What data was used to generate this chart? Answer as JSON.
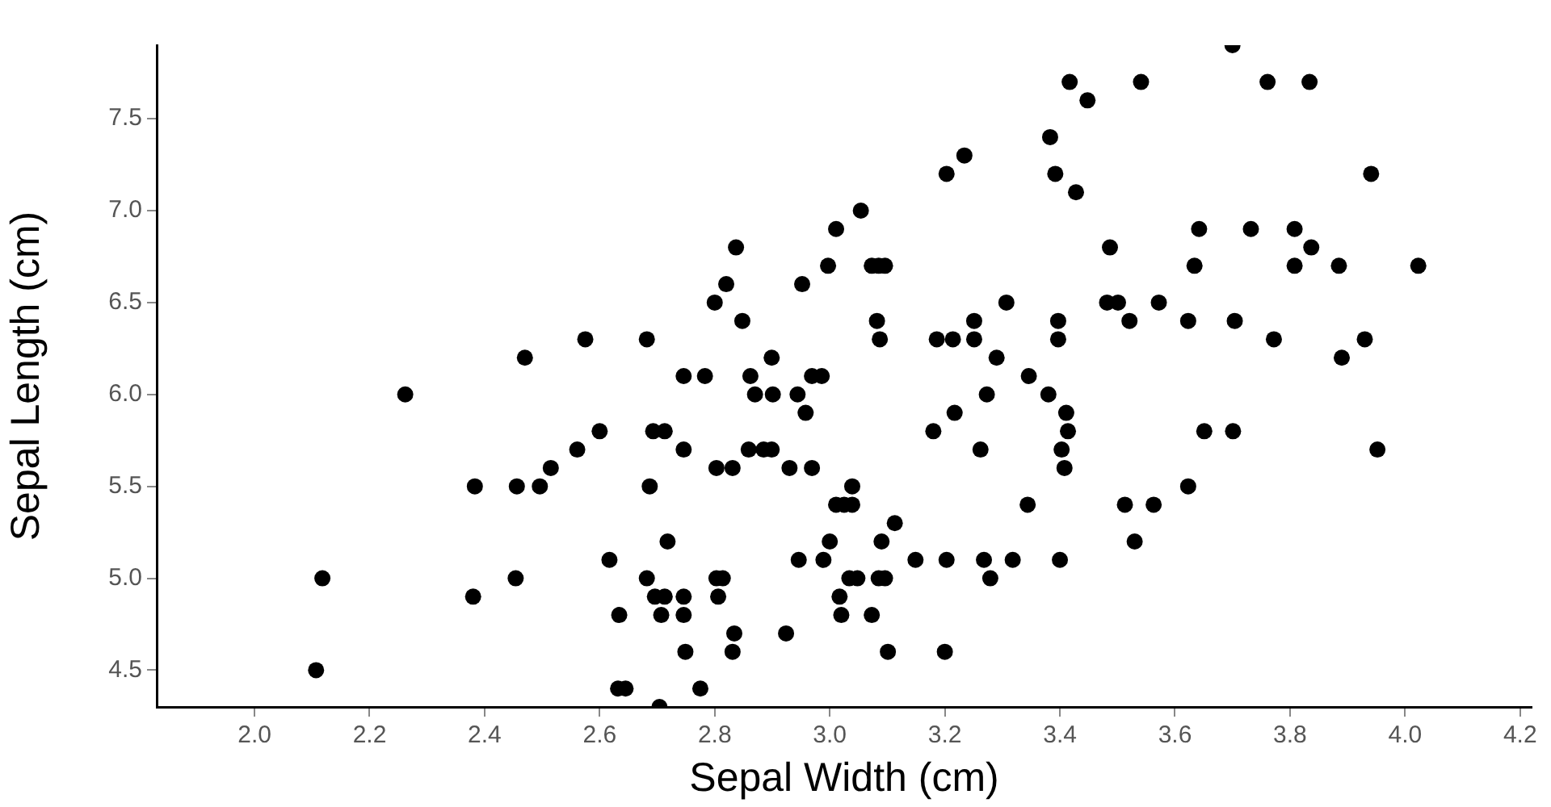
{
  "chart_data": {
    "type": "scatter",
    "xlabel": "Sepal Width (cm)",
    "ylabel": "Sepal Length (cm)",
    "xlim": [
      1.83,
      4.22
    ],
    "xticks": [
      {
        "value": 2.0,
        "label": "2.0"
      },
      {
        "value": 2.2,
        "label": "2.2"
      },
      {
        "value": 2.4,
        "label": "2.4"
      },
      {
        "value": 2.6,
        "label": "2.6"
      },
      {
        "value": 2.8,
        "label": "2.8"
      },
      {
        "value": 3.0,
        "label": "3.0"
      },
      {
        "value": 3.2,
        "label": "3.2"
      },
      {
        "value": 3.4,
        "label": "3.4"
      },
      {
        "value": 3.6,
        "label": "3.6"
      },
      {
        "value": 3.8,
        "label": "3.8"
      },
      {
        "value": 4.0,
        "label": "4.0"
      },
      {
        "value": 4.2,
        "label": "4.2"
      }
    ],
    "ylim": [
      4.3,
      7.9
    ],
    "yticks": [
      4.5,
      {
        "value": 5.0,
        "label": "5.0"
      },
      5.5,
      {
        "value": 6.0,
        "label": "6.0"
      },
      6.5,
      {
        "value": 7.0,
        "label": "7.0"
      },
      7.5
    ],
    "grid": false,
    "legend": false,
    "marker": "circle",
    "series": [
      {
        "color": "#000000",
        "x": [
          3.7,
          3.417,
          3.541,
          3.761,
          3.834,
          3.448,
          3.383,
          3.234,
          3.203,
          3.392,
          3.428,
          3.054,
          3.011,
          2.837,
          2.82,
          2.997,
          3.073,
          3.085,
          3.096,
          2.952,
          2.8,
          3.307,
          2.848,
          3.082,
          3.251,
          3.397,
          2.682,
          3.087,
          3.186,
          3.214,
          3.251,
          3.397,
          2.899,
          3.29,
          2.746,
          2.783,
          2.862,
          2.969,
          2.986,
          3.346,
          3.941,
          3.642,
          3.732,
          3.808,
          3.487,
          3.837,
          3.634,
          3.808,
          3.885,
          4.023,
          3.482,
          3.501,
          3.572,
          3.521,
          3.623,
          3.704,
          3.772,
          3.93,
          3.89,
          2.47,
          2.575,
          2.262,
          2.383,
          2.456,
          2.496,
          2.515,
          2.561,
          2.6,
          2.118,
          2.38,
          2.454,
          2.617,
          2.634,
          2.107,
          2.632,
          2.645,
          2.87,
          2.901,
          2.944,
          3.273,
          3.38,
          2.958,
          3.217,
          3.411,
          2.693,
          2.713,
          3.18,
          3.414,
          3.651,
          3.701,
          2.746,
          2.859,
          2.885,
          2.899,
          3.262,
          3.403,
          3.952,
          2.803,
          2.831,
          2.93,
          2.969,
          3.408,
          2.687,
          3.039,
          3.011,
          3.025,
          3.039,
          3.344,
          3.623,
          3.513,
          3.563,
          3.53,
          3.113,
          2.718,
          3.0,
          3.09,
          2.946,
          2.989,
          3.149,
          3.203,
          3.268,
          3.318,
          3.4,
          2.682,
          2.803,
          2.814,
          3.034,
          3.048,
          3.085,
          3.096,
          3.279,
          2.696,
          2.713,
          2.746,
          2.806,
          3.017,
          2.707,
          2.746,
          3.02,
          3.073,
          2.834,
          2.924,
          2.749,
          2.831,
          3.101,
          3.2,
          2.775,
          2.704
        ],
        "values": [
          7.9,
          7.7,
          7.7,
          7.7,
          7.7,
          7.6,
          7.4,
          7.3,
          7.2,
          7.2,
          7.1,
          7.0,
          6.9,
          6.8,
          6.6,
          6.7,
          6.7,
          6.7,
          6.7,
          6.6,
          6.5,
          6.5,
          6.4,
          6.4,
          6.4,
          6.4,
          6.3,
          6.3,
          6.3,
          6.3,
          6.3,
          6.3,
          6.2,
          6.2,
          6.1,
          6.1,
          6.1,
          6.1,
          6.1,
          6.1,
          7.2,
          6.9,
          6.9,
          6.9,
          6.8,
          6.8,
          6.7,
          6.7,
          6.7,
          6.7,
          6.5,
          6.5,
          6.5,
          6.4,
          6.4,
          6.4,
          6.3,
          6.3,
          6.2,
          6.2,
          6.3,
          6.0,
          5.5,
          5.5,
          5.5,
          5.6,
          5.7,
          5.8,
          5.0,
          4.9,
          5.0,
          5.1,
          4.8,
          4.5,
          4.4,
          4.4,
          6.0,
          6.0,
          6.0,
          6.0,
          6.0,
          5.9,
          5.9,
          5.9,
          5.8,
          5.8,
          5.8,
          5.8,
          5.8,
          5.8,
          5.7,
          5.7,
          5.7,
          5.7,
          5.7,
          5.7,
          5.7,
          5.6,
          5.6,
          5.6,
          5.6,
          5.6,
          5.5,
          5.5,
          5.4,
          5.4,
          5.4,
          5.4,
          5.5,
          5.4,
          5.4,
          5.2,
          5.3,
          5.2,
          5.2,
          5.2,
          5.1,
          5.1,
          5.1,
          5.1,
          5.1,
          5.1,
          5.1,
          5.0,
          5.0,
          5.0,
          5.0,
          5.0,
          5.0,
          5.0,
          5.0,
          4.9,
          4.9,
          4.9,
          4.9,
          4.9,
          4.8,
          4.8,
          4.8,
          4.8,
          4.7,
          4.7,
          4.6,
          4.6,
          4.6,
          4.6,
          4.4,
          4.3
        ]
      }
    ]
  }
}
